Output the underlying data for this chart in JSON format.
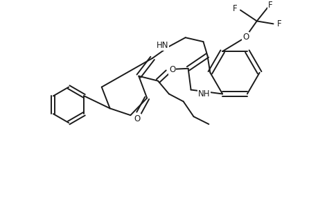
{
  "background_color": "#ffffff",
  "line_color": "#1a1a1a",
  "line_width": 1.4,
  "figsize": [
    4.6,
    3.0
  ],
  "dpi": 100,
  "xlim": [
    0,
    4.6
  ],
  "ylim": [
    0,
    3.0
  ]
}
